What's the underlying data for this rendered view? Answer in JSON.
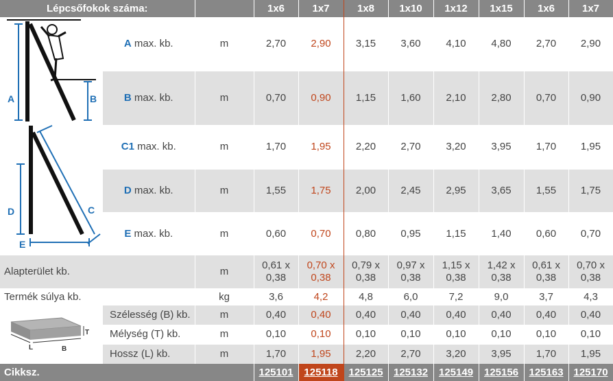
{
  "header": {
    "title": "Lépcsőfokok száma:",
    "cols": [
      "1x6",
      "1x7",
      "1x8",
      "1x10",
      "1x12",
      "1x15",
      "1x6",
      "1x7"
    ]
  },
  "rows": {
    "A": {
      "letter": "A",
      "label": "max. kb.",
      "unit": "m",
      "values": [
        "2,70",
        "2,90",
        "3,15",
        "3,60",
        "4,10",
        "4,80",
        "2,70",
        "2,90"
      ]
    },
    "B": {
      "letter": "B",
      "label": "max. kb.",
      "unit": "m",
      "values": [
        "0,70",
        "0,90",
        "1,15",
        "1,60",
        "2,10",
        "2,80",
        "0,70",
        "0,90"
      ]
    },
    "C1": {
      "letter": "C1",
      "label": "max. kb.",
      "unit": "m",
      "values": [
        "1,70",
        "1,95",
        "2,20",
        "2,70",
        "3,20",
        "3,95",
        "1,70",
        "1,95"
      ]
    },
    "D": {
      "letter": "D",
      "label": "max. kb.",
      "unit": "m",
      "values": [
        "1,55",
        "1,75",
        "2,00",
        "2,45",
        "2,95",
        "3,65",
        "1,55",
        "1,75"
      ]
    },
    "E": {
      "letter": "E",
      "label": "max. kb.",
      "unit": "m",
      "values": [
        "0,60",
        "0,70",
        "0,80",
        "0,95",
        "1,15",
        "1,40",
        "0,60",
        "0,70"
      ]
    },
    "area": {
      "label": "Alapterület kb.",
      "unit": "m",
      "top": [
        "0,61 x",
        "0,70 x",
        "0,79 x",
        "0,97 x",
        "1,15 x",
        "1,42 x",
        "0,61 x",
        "0,70 x"
      ],
      "bottom": [
        "0,38",
        "0,38",
        "0,38",
        "0,38",
        "0,38",
        "0,38",
        "0,38",
        "0,38"
      ]
    },
    "weight": {
      "label": "Termék súlya kb.",
      "unit": "kg",
      "values": [
        "3,6",
        "4,2",
        "4,8",
        "6,0",
        "7,2",
        "9,0",
        "3,7",
        "4,3"
      ]
    },
    "width": {
      "label": "Szélesség (B) kb.",
      "unit": "m",
      "values": [
        "0,40",
        "0,40",
        "0,40",
        "0,40",
        "0,40",
        "0,40",
        "0,40",
        "0,40"
      ]
    },
    "depth": {
      "label": "Mélység (T) kb.",
      "unit": "m",
      "values": [
        "0,10",
        "0,10",
        "0,10",
        "0,10",
        "0,10",
        "0,10",
        "0,10",
        "0,10"
      ]
    },
    "length": {
      "label": "Hossz (L) kb.",
      "unit": "m",
      "values": [
        "1,70",
        "1,95",
        "2,20",
        "2,70",
        "3,20",
        "3,95",
        "1,70",
        "1,95"
      ]
    }
  },
  "diagram": {
    "labels": {
      "A": "A",
      "B": "B",
      "C": "C",
      "D": "D",
      "E": "E"
    }
  },
  "box": {
    "labels": {
      "T": "T",
      "L": "L",
      "B": "B"
    }
  },
  "footer": {
    "title": "Cikksz.",
    "codes": [
      "125101",
      "125118",
      "125125",
      "125132",
      "125149",
      "125156",
      "125163",
      "125170"
    ]
  },
  "colors": {
    "header_bg": "#878787",
    "highlight": "#c0461c",
    "letter_blue": "#1f6fb5",
    "row_grey": "#e0e0e0"
  }
}
